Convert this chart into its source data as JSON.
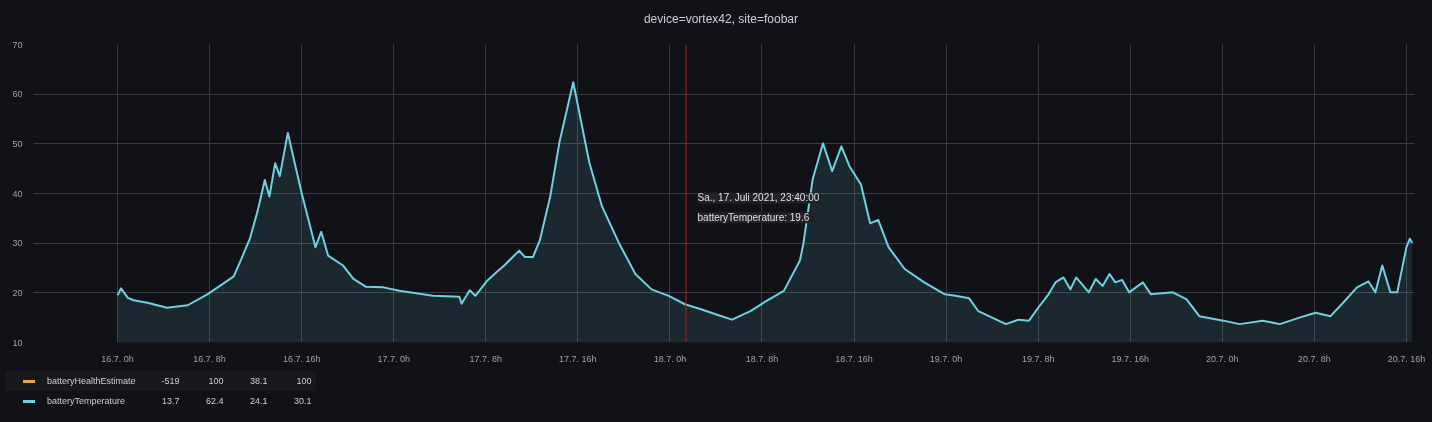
{
  "chart_data": {
    "type": "area",
    "title": "device=vortex42, site=foobar",
    "x": [
      "2021-07-16T00:00",
      "2021-07-16T00:18",
      "2021-07-16T00:54",
      "2021-07-16T01:24",
      "2021-07-16T02:36",
      "2021-07-16T04:18",
      "2021-07-16T06:06",
      "2021-07-16T07:48",
      "2021-07-16T08:54",
      "2021-07-16T10:06",
      "2021-07-16T10:42",
      "2021-07-16T11:30",
      "2021-07-16T12:12",
      "2021-07-16T12:48",
      "2021-07-16T13:12",
      "2021-07-16T13:42",
      "2021-07-16T14:06",
      "2021-07-16T14:48",
      "2021-07-16T16:00",
      "2021-07-16T17:12",
      "2021-07-16T17:42",
      "2021-07-16T18:18",
      "2021-07-16T19:36",
      "2021-07-16T20:30",
      "2021-07-16T21:36",
      "2021-07-16T23:06",
      "2021-07-17T00:30",
      "2021-07-17T03:24",
      "2021-07-17T05:42",
      "2021-07-17T05:54",
      "2021-07-17T06:36",
      "2021-07-17T07:06",
      "2021-07-17T08:06",
      "2021-07-17T08:54",
      "2021-07-17T09:36",
      "2021-07-17T10:54",
      "2021-07-17T11:24",
      "2021-07-17T12:06",
      "2021-07-17T12:42",
      "2021-07-17T13:36",
      "2021-07-17T14:24",
      "2021-07-17T15:36",
      "2021-07-17T17:00",
      "2021-07-17T18:06",
      "2021-07-17T19:36",
      "2021-07-17T21:00",
      "2021-07-17T22:24",
      "2021-07-17T23:54",
      "2021-07-18T01:18",
      "2021-07-18T02:42",
      "2021-07-18T04:06",
      "2021-07-18T05:24",
      "2021-07-18T07:00",
      "2021-07-18T08:24",
      "2021-07-18T09:54",
      "2021-07-18T11:18",
      "2021-07-18T11:36",
      "2021-07-18T12:24",
      "2021-07-18T13:18",
      "2021-07-18T14:06",
      "2021-07-18T14:54",
      "2021-07-18T15:36",
      "2021-07-18T16:36",
      "2021-07-18T17:24",
      "2021-07-18T18:06",
      "2021-07-18T19:00",
      "2021-07-18T20:24",
      "2021-07-18T22:06",
      "2021-07-18T23:54",
      "2021-07-19T00:48",
      "2021-07-19T02:00",
      "2021-07-19T02:48",
      "2021-07-19T05:12",
      "2021-07-19T06:18",
      "2021-07-19T07:12",
      "2021-07-19T08:06",
      "2021-07-19T08:54",
      "2021-07-19T09:30",
      "2021-07-19T10:12",
      "2021-07-19T10:48",
      "2021-07-19T11:18",
      "2021-07-19T12:24",
      "2021-07-19T13:00",
      "2021-07-19T13:36",
      "2021-07-19T14:12",
      "2021-07-19T14:42",
      "2021-07-19T15:18",
      "2021-07-19T15:54",
      "2021-07-19T17:06",
      "2021-07-19T17:48",
      "2021-07-19T19:42",
      "2021-07-19T20:54",
      "2021-07-19T22:00",
      "2021-07-20T00:06",
      "2021-07-20T01:30",
      "2021-07-20T03:30",
      "2021-07-20T05:00",
      "2021-07-20T06:42",
      "2021-07-20T08:06",
      "2021-07-20T09:24",
      "2021-07-20T10:30",
      "2021-07-20T11:42",
      "2021-07-20T12:42",
      "2021-07-20T13:18",
      "2021-07-20T13:54",
      "2021-07-20T14:36",
      "2021-07-20T15:12",
      "2021-07-20T16:00",
      "2021-07-20T16:18",
      "2021-07-20T16:30"
    ],
    "series": [
      {
        "name": "batteryHealthEstimate",
        "color": "#e8a838",
        "values": [
          null,
          null,
          null,
          null,
          null,
          null,
          null,
          null,
          null,
          null,
          null,
          null,
          null,
          null,
          null,
          null,
          null,
          null,
          null,
          null,
          null,
          null,
          null,
          null,
          null,
          null,
          null,
          null,
          null,
          null,
          null,
          null,
          null,
          null,
          null,
          null,
          null,
          null,
          null,
          null,
          null,
          null,
          null,
          null,
          null,
          null,
          null,
          null,
          null,
          null,
          null,
          null,
          null,
          null,
          null,
          null,
          null,
          null,
          null,
          null,
          null,
          null,
          null,
          null,
          null,
          null,
          null,
          null,
          null,
          null,
          null,
          null,
          null,
          null,
          null,
          null,
          null,
          null,
          null,
          null,
          null,
          null,
          null,
          null,
          null,
          null,
          null,
          null,
          null,
          null,
          null,
          null,
          null,
          null,
          null,
          null,
          null,
          null,
          null,
          null,
          null,
          null,
          null,
          null,
          null,
          null,
          null,
          null,
          null,
          null
        ]
      },
      {
        "name": "batteryTemperature",
        "color": "#6ed0e0",
        "values": [
          19.5,
          20.9,
          19.0,
          18.5,
          18.0,
          17.0,
          17.5,
          19.7,
          21.4,
          23.3,
          26.5,
          30.9,
          36.7,
          42.7,
          39.4,
          46.1,
          43.5,
          52.2,
          40.1,
          29.2,
          32.3,
          27.5,
          25.5,
          22.8,
          21.2,
          21.1,
          20.4,
          19.4,
          19.2,
          17.8,
          20.5,
          19.4,
          22.4,
          24.1,
          25.5,
          28.5,
          27.2,
          27.2,
          30.6,
          39.4,
          50.3,
          62.4,
          46.2,
          37.4,
          29.9,
          23.8,
          20.7,
          19.4,
          17.7,
          16.7,
          15.6,
          14.6,
          16.3,
          18.4,
          20.4,
          26.5,
          29.9,
          42.8,
          50.1,
          44.5,
          49.5,
          45.5,
          41.8,
          34.0,
          34.7,
          29.2,
          24.8,
          22.1,
          19.7,
          19.4,
          18.9,
          16.3,
          13.7,
          14.6,
          14.4,
          17.3,
          19.7,
          22.1,
          23.1,
          20.7,
          23.1,
          20.1,
          22.8,
          21.4,
          23.8,
          22.1,
          22.6,
          20.1,
          22.1,
          19.7,
          20.1,
          18.7,
          15.3,
          14.4,
          13.7,
          14.4,
          13.7,
          15.0,
          16.0,
          15.3,
          18.0,
          21.1,
          22.3,
          20.1,
          25.5,
          20.1,
          20.1,
          29.2,
          30.9,
          30.1
        ]
      }
    ],
    "xlim": [
      "2021-07-15T16:42",
      "2021-07-20T16:42"
    ],
    "xticks": [
      {
        "value": "2021-07-16T00:00",
        "label": "16.7. 0h"
      },
      {
        "value": "2021-07-16T08:00",
        "label": "16.7. 8h"
      },
      {
        "value": "2021-07-16T16:00",
        "label": "16.7. 16h"
      },
      {
        "value": "2021-07-17T00:00",
        "label": "17.7. 0h"
      },
      {
        "value": "2021-07-17T08:00",
        "label": "17.7. 8h"
      },
      {
        "value": "2021-07-17T16:00",
        "label": "17.7. 16h"
      },
      {
        "value": "2021-07-18T00:00",
        "label": "18.7. 0h"
      },
      {
        "value": "2021-07-18T08:00",
        "label": "18.7. 8h"
      },
      {
        "value": "2021-07-18T16:00",
        "label": "18.7. 16h"
      },
      {
        "value": "2021-07-19T00:00",
        "label": "19.7. 0h"
      },
      {
        "value": "2021-07-19T08:00",
        "label": "19.7. 8h"
      },
      {
        "value": "2021-07-19T16:00",
        "label": "19.7. 16h"
      },
      {
        "value": "2021-07-20T00:00",
        "label": "20.7. 0h"
      },
      {
        "value": "2021-07-20T08:00",
        "label": "20.7. 8h"
      },
      {
        "value": "2021-07-20T16:00",
        "label": "20.7. 16h"
      }
    ],
    "ylim": [
      10,
      70
    ],
    "yticks": [
      10,
      20,
      30,
      40,
      50,
      60,
      70
    ],
    "grid": true,
    "legend": "bottom",
    "ref_lines": [
      {
        "axis": "x",
        "value": "2021-07-18T01:24",
        "color": "#b0201c"
      }
    ],
    "annotations": [
      "Sa., 17. Juli 2021, 23:40:00",
      "batteryTemperature:   19.6",
      "-519",
      "100",
      "38.1",
      "100",
      "13.7",
      "62.4",
      "24.1",
      "30.1"
    ]
  }
}
